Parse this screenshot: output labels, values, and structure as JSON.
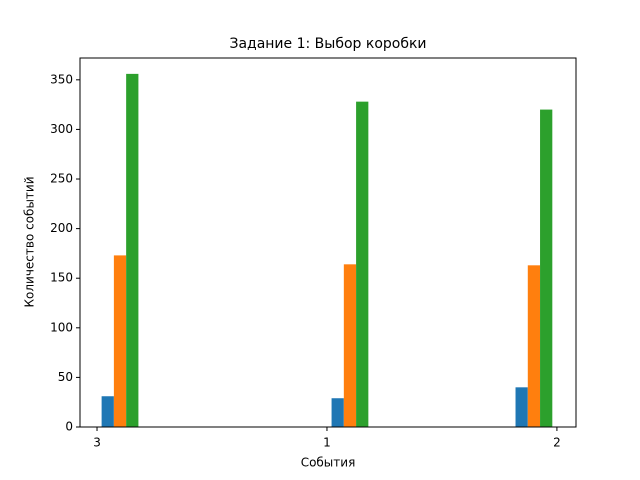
{
  "chart_data": {
    "type": "histogram",
    "title": "Задание 1: Выбор коробки",
    "x_label": "События",
    "y_label": "Количество событий",
    "bins": [
      0,
      0.2,
      0.4,
      0.6,
      0.8,
      1.0,
      1.2,
      1.4,
      1.6,
      1.8,
      2.0
    ],
    "series": [
      {
        "color": "#1f77b4",
        "values": [
          31,
          0,
          0,
          0,
          0,
          29,
          0,
          0,
          0,
          40
        ]
      },
      {
        "color": "#ff7f0e",
        "values": [
          173,
          0,
          0,
          0,
          0,
          164,
          0,
          0,
          0,
          163
        ]
      },
      {
        "color": "#2ca02c",
        "values": [
          356,
          0,
          0,
          0,
          0,
          328,
          0,
          0,
          0,
          320
        ]
      }
    ],
    "xlim": [
      -0.074,
      2.083
    ],
    "xticks": [
      {
        "value": 0,
        "label": "3"
      },
      {
        "value": 1,
        "label": "1"
      },
      {
        "value": 2,
        "label": "2"
      }
    ],
    "ylim": [
      0,
      372
    ],
    "yticks": [
      0,
      50,
      100,
      150,
      200,
      250,
      300,
      350
    ]
  }
}
